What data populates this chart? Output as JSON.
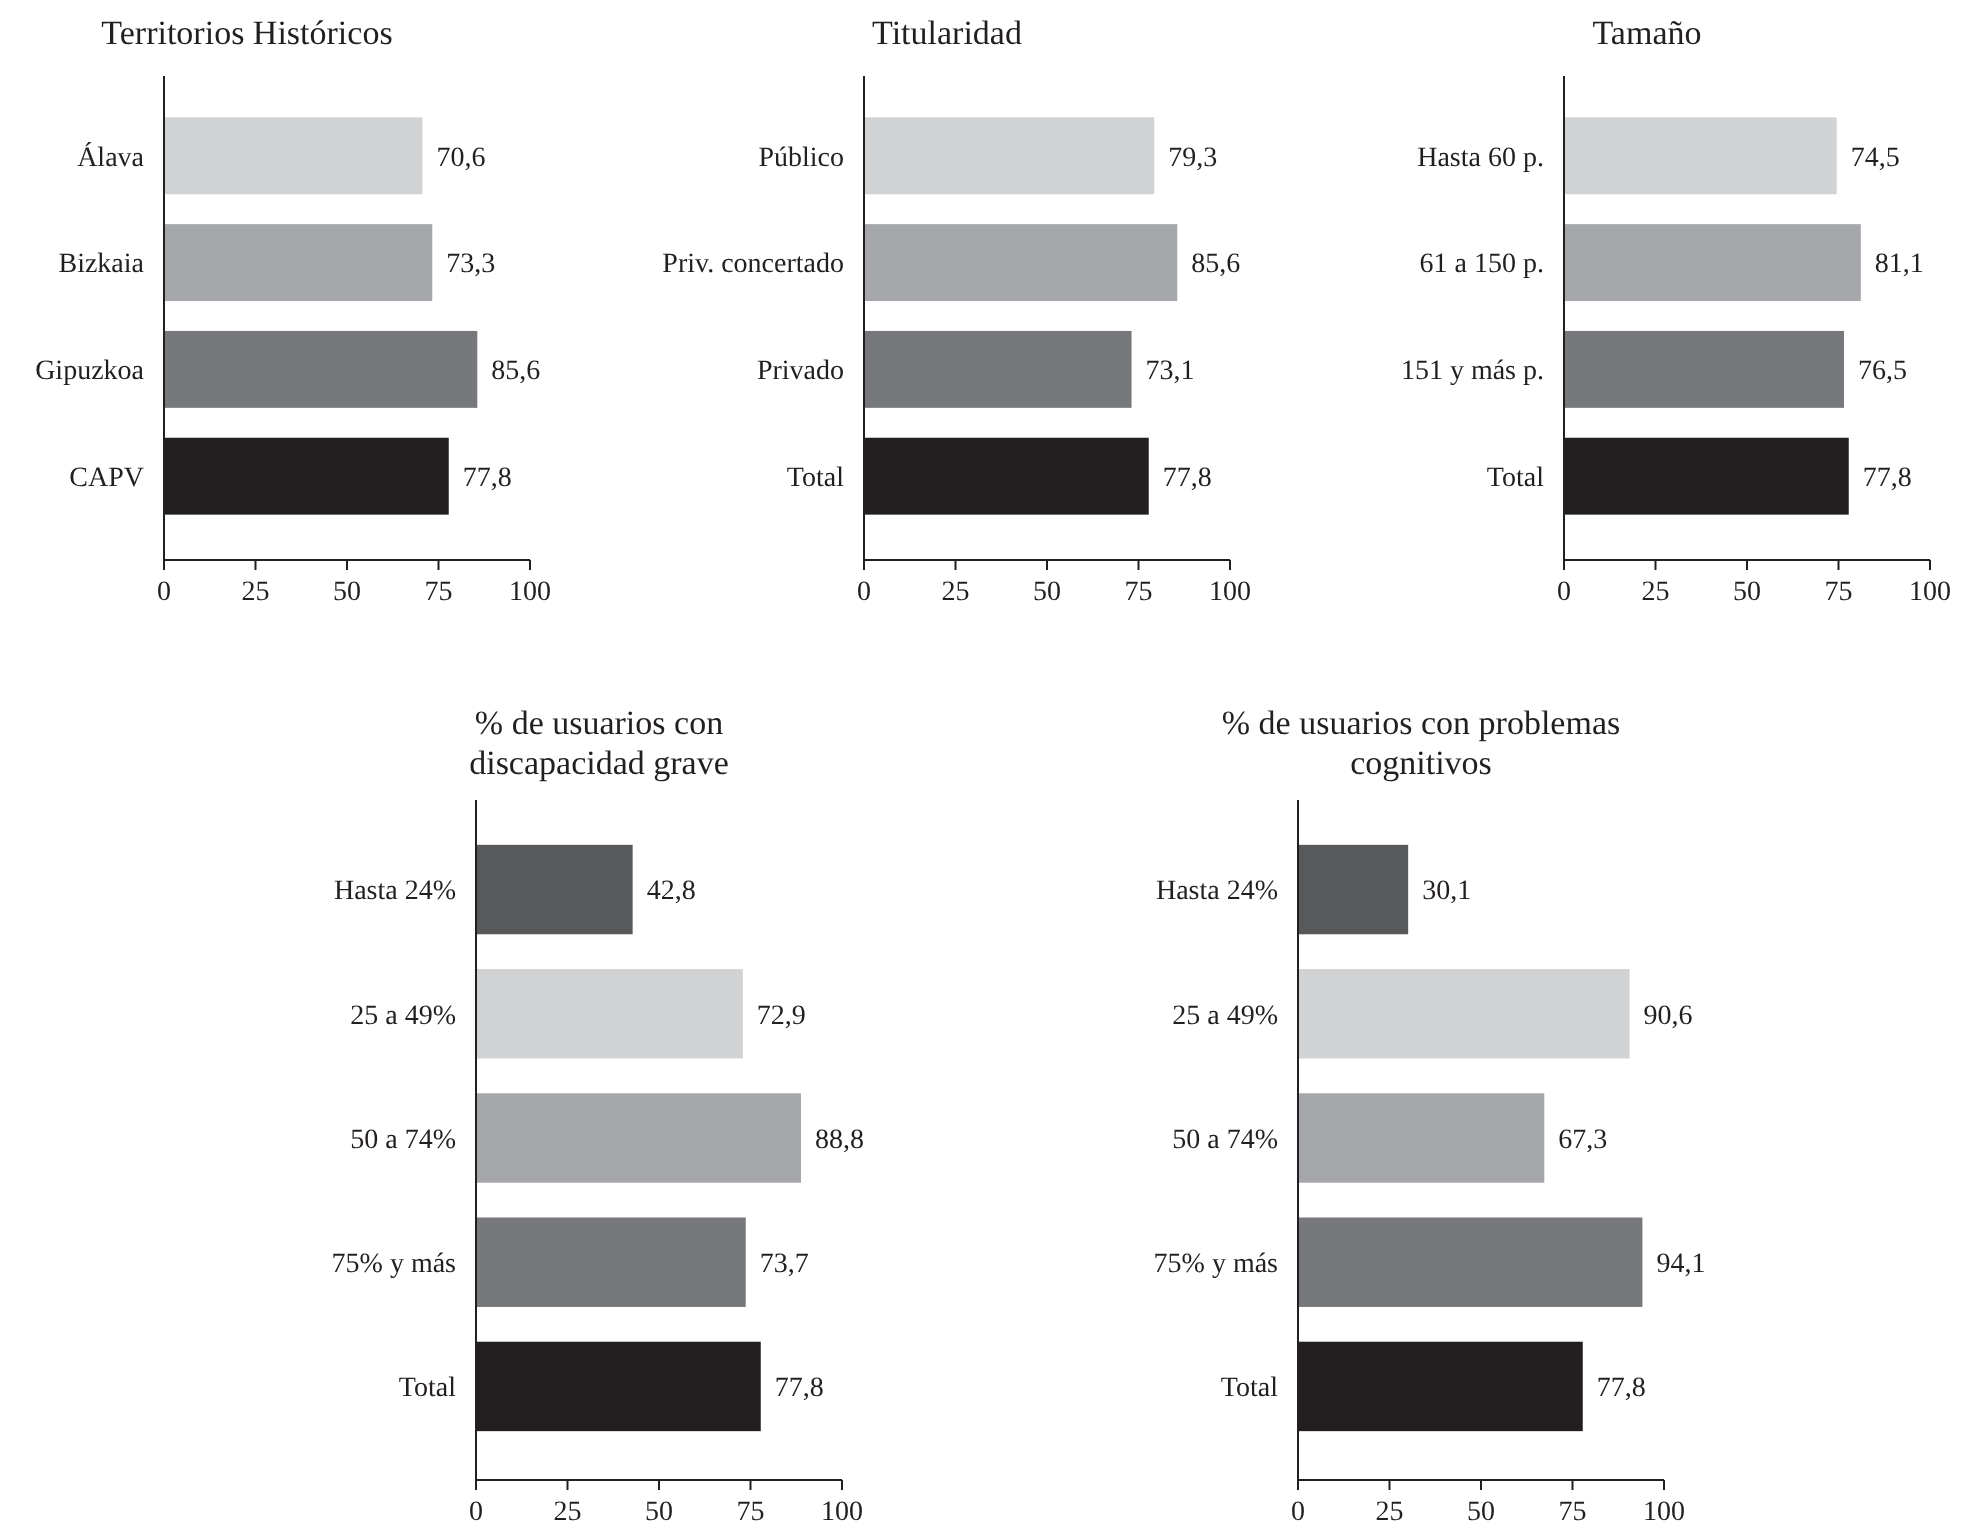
{
  "chart_data": [
    {
      "type": "bar",
      "orientation": "horizontal",
      "title": "Territorios Históricos",
      "categories": [
        "Álava",
        "Bizkaia",
        "Gipuzkoa",
        "CAPV"
      ],
      "values": [
        70.6,
        73.3,
        85.6,
        77.8
      ],
      "value_labels": [
        "70,6",
        "73,3",
        "85,6",
        "77,8"
      ],
      "colors": [
        "#d1d2d4",
        "#a6a7aa",
        "#77787b",
        "#231f20"
      ],
      "xlim": [
        0,
        100
      ],
      "xticks": [
        0,
        25,
        50,
        75,
        100
      ]
    },
    {
      "type": "bar",
      "orientation": "horizontal",
      "title": "Titularidad",
      "categories": [
        "Público",
        "Priv. concertado",
        "Privado",
        "Total"
      ],
      "values": [
        79.3,
        85.6,
        73.1,
        77.8
      ],
      "value_labels": [
        "79,3",
        "85,6",
        "73,1",
        "77,8"
      ],
      "colors": [
        "#d1d2d4",
        "#a6a7aa",
        "#77787b",
        "#231f20"
      ],
      "xlim": [
        0,
        100
      ],
      "xticks": [
        0,
        25,
        50,
        75,
        100
      ]
    },
    {
      "type": "bar",
      "orientation": "horizontal",
      "title": "Tamaño",
      "categories": [
        "Hasta 60 p.",
        "61 a 150 p.",
        "151 y más p.",
        "Total"
      ],
      "values": [
        74.5,
        81.1,
        76.5,
        77.8
      ],
      "value_labels": [
        "74,5",
        "81,1",
        "76,5",
        "77,8"
      ],
      "colors": [
        "#d1d2d4",
        "#a6a7aa",
        "#77787b",
        "#231f20"
      ],
      "xlim": [
        0,
        100
      ],
      "xticks": [
        0,
        25,
        50,
        75,
        100
      ]
    },
    {
      "type": "bar",
      "orientation": "horizontal",
      "title": "% de usuarios con\ndiscapacidad grave",
      "categories": [
        "Hasta 24%",
        "25 a 49%",
        "50 a 74%",
        "75% y más",
        "Total"
      ],
      "values": [
        42.8,
        72.9,
        88.8,
        73.7,
        77.8
      ],
      "value_labels": [
        "42,8",
        "72,9",
        "88,8",
        "73,7",
        "77,8"
      ],
      "colors": [
        "#58595b",
        "#d1d2d4",
        "#a6a7aa",
        "#77787b",
        "#231f20"
      ],
      "xlim": [
        0,
        100
      ],
      "xticks": [
        0,
        25,
        50,
        75,
        100
      ]
    },
    {
      "type": "bar",
      "orientation": "horizontal",
      "title": "% de usuarios con problemas\ncognitivos",
      "categories": [
        "Hasta 24%",
        "25 a 49%",
        "50 a 74%",
        "75% y más",
        "Total"
      ],
      "values": [
        30.1,
        90.6,
        67.3,
        94.1,
        77.8
      ],
      "value_labels": [
        "30,1",
        "90,6",
        "67,3",
        "94,1",
        "77,8"
      ],
      "colors": [
        "#58595b",
        "#d1d2d4",
        "#a6a7aa",
        "#77787b",
        "#231f20"
      ],
      "xlim": [
        0,
        100
      ],
      "xticks": [
        0,
        25,
        50,
        75,
        100
      ]
    }
  ]
}
